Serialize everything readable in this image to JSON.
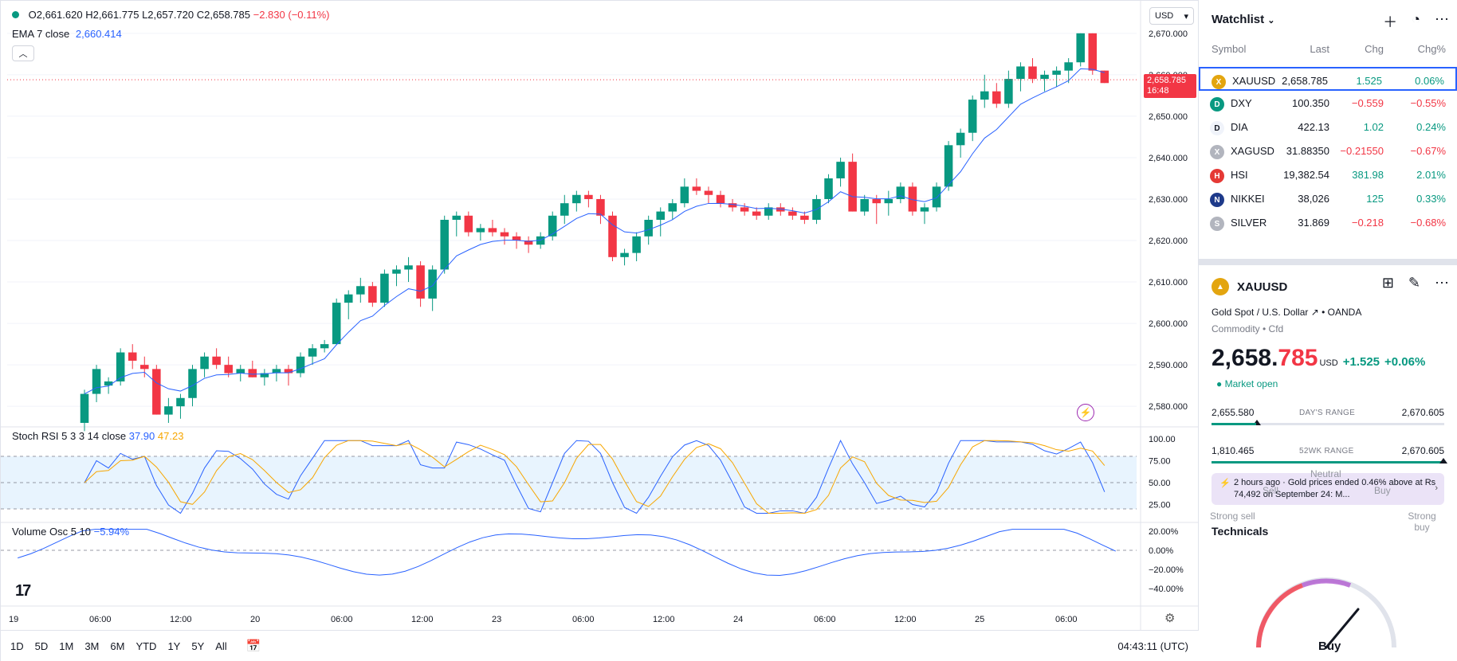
{
  "chart": {
    "ohlc": {
      "open": "O2,661.620",
      "high": "H2,661.775",
      "low": "L2,657.720",
      "close": "C2,658.785",
      "change": "−2.830 (−0.11%)"
    },
    "ema_label": "EMA 7 close",
    "ema_value": "2,660.414",
    "currency": "USD",
    "price_tag": {
      "price": "2,658.785",
      "countdown": "16:48"
    },
    "price_axis": [
      "2,670.000",
      "2,660.000",
      "2,650.000",
      "2,640.000",
      "2,630.000",
      "2,620.000",
      "2,610.000",
      "2,600.000",
      "2,590.000",
      "2,580.000"
    ],
    "stoch": {
      "label": "Stoch RSI 5 3 3 14 close",
      "k": "37.90",
      "d": "47.23",
      "axis": [
        "100.00",
        "75.00",
        "50.00",
        "25.00"
      ]
    },
    "vol": {
      "label": "Volume Osc 5 10",
      "value": "−5.94%",
      "axis": [
        "20.00%",
        "0.00%",
        "−20.00%",
        "−40.00%"
      ]
    },
    "time_axis": [
      "19",
      "06:00",
      "12:00",
      "20",
      "06:00",
      "12:00",
      "23",
      "06:00",
      "12:00",
      "24",
      "06:00",
      "12:00",
      "25",
      "06:00"
    ],
    "timeframes": [
      "1D",
      "5D",
      "1M",
      "3M",
      "6M",
      "YTD",
      "1Y",
      "5Y",
      "All"
    ],
    "clock": "04:43:11 (UTC)",
    "colors": {
      "up": "#089981",
      "down": "#f23645",
      "ema": "#2962ff",
      "k": "#2962ff",
      "d": "#f7a600"
    }
  },
  "chart_data": {
    "type": "candlestick",
    "candles": [
      [
        2576,
        2584,
        2574,
        2583
      ],
      [
        2583,
        2590,
        2581,
        2589
      ],
      [
        2585,
        2587,
        2583,
        2586
      ],
      [
        2586,
        2594,
        2585,
        2593
      ],
      [
        2593,
        2595,
        2589,
        2591
      ],
      [
        2590,
        2592,
        2587,
        2589
      ],
      [
        2589,
        2590,
        2578,
        2578
      ],
      [
        2578,
        2582,
        2576,
        2580
      ],
      [
        2580,
        2583,
        2577,
        2582
      ],
      [
        2582,
        2590,
        2580,
        2589
      ],
      [
        2589,
        2593,
        2587,
        2592
      ],
      [
        2592,
        2594,
        2589,
        2590
      ],
      [
        2590,
        2592,
        2587,
        2588
      ],
      [
        2588,
        2590,
        2586,
        2589
      ],
      [
        2589,
        2591,
        2587,
        2587
      ],
      [
        2587,
        2589,
        2585,
        2588
      ],
      [
        2588,
        2590,
        2586,
        2589
      ],
      [
        2589,
        2590,
        2585,
        2588
      ],
      [
        2588,
        2593,
        2587,
        2592
      ],
      [
        2592,
        2595,
        2590,
        2594
      ],
      [
        2594,
        2596,
        2593,
        2595
      ],
      [
        2595,
        2606,
        2595,
        2605
      ],
      [
        2605,
        2608,
        2601,
        2607
      ],
      [
        2607,
        2611,
        2605,
        2609
      ],
      [
        2609,
        2610,
        2604,
        2605
      ],
      [
        2605,
        2613,
        2604,
        2612
      ],
      [
        2612,
        2614,
        2609,
        2613
      ],
      [
        2613,
        2616,
        2610,
        2614
      ],
      [
        2614,
        2615,
        2604,
        2606
      ],
      [
        2606,
        2614,
        2603,
        2613
      ],
      [
        2613,
        2626,
        2612,
        2625
      ],
      [
        2625,
        2627,
        2621,
        2626
      ],
      [
        2626,
        2627,
        2621,
        2622
      ],
      [
        2622,
        2624,
        2620,
        2623
      ],
      [
        2623,
        2625,
        2621,
        2622
      ],
      [
        2622,
        2623,
        2619,
        2621
      ],
      [
        2621,
        2622,
        2618,
        2620
      ],
      [
        2620,
        2621,
        2617,
        2619
      ],
      [
        2619,
        2622,
        2618,
        2621
      ],
      [
        2621,
        2627,
        2620,
        2626
      ],
      [
        2626,
        2631,
        2624,
        2629
      ],
      [
        2629,
        2632,
        2627,
        2631
      ],
      [
        2631,
        2632,
        2628,
        2630
      ],
      [
        2630,
        2631,
        2624,
        2626
      ],
      [
        2626,
        2627,
        2615,
        2616
      ],
      [
        2616,
        2618,
        2614,
        2617
      ],
      [
        2617,
        2622,
        2615,
        2621
      ],
      [
        2621,
        2626,
        2619,
        2625
      ],
      [
        2625,
        2628,
        2621,
        2627
      ],
      [
        2627,
        2630,
        2625,
        2629
      ],
      [
        2629,
        2635,
        2628,
        2633
      ],
      [
        2633,
        2635,
        2631,
        2632
      ],
      [
        2632,
        2633,
        2629,
        2631
      ],
      [
        2631,
        2632,
        2628,
        2629
      ],
      [
        2629,
        2630,
        2627,
        2628
      ],
      [
        2628,
        2629,
        2626,
        2627
      ],
      [
        2627,
        2628,
        2625,
        2626
      ],
      [
        2626,
        2629,
        2625,
        2628
      ],
      [
        2628,
        2629,
        2626,
        2627
      ],
      [
        2627,
        2628,
        2625,
        2626
      ],
      [
        2626,
        2627,
        2624,
        2625
      ],
      [
        2625,
        2631,
        2624,
        2630
      ],
      [
        2630,
        2636,
        2629,
        2635
      ],
      [
        2635,
        2640,
        2633,
        2639
      ],
      [
        2639,
        2641,
        2627,
        2627
      ],
      [
        2627,
        2631,
        2626,
        2630
      ],
      [
        2630,
        2631,
        2624,
        2629
      ],
      [
        2629,
        2632,
        2626,
        2630
      ],
      [
        2630,
        2634,
        2629,
        2633
      ],
      [
        2633,
        2634,
        2626,
        2627
      ],
      [
        2627,
        2629,
        2624,
        2628
      ],
      [
        2628,
        2634,
        2627,
        2633
      ],
      [
        2633,
        2644,
        2632,
        2643
      ],
      [
        2643,
        2647,
        2640,
        2646
      ],
      [
        2646,
        2655,
        2644,
        2654
      ],
      [
        2654,
        2660,
        2652,
        2656
      ],
      [
        2656,
        2658,
        2652,
        2653
      ],
      [
        2653,
        2661,
        2652,
        2659
      ],
      [
        2659,
        2663,
        2656,
        2662
      ],
      [
        2662,
        2664,
        2658,
        2659
      ],
      [
        2659,
        2661,
        2656,
        2660
      ],
      [
        2660,
        2662,
        2657,
        2661
      ],
      [
        2661,
        2664,
        2658,
        2663
      ],
      [
        2663,
        2670,
        2662,
        2670
      ],
      [
        2670,
        2670,
        2660,
        2661
      ],
      [
        2661,
        2661,
        2658,
        2658
      ]
    ],
    "ylim": [
      2576,
      2674
    ],
    "price_line": 2658.785
  },
  "watchlist": {
    "title": "Watchlist",
    "columns": [
      "Symbol",
      "Last",
      "Chg",
      "Chg%"
    ],
    "rows": [
      {
        "sym": "XAUUSD",
        "last": "2,658.785",
        "chg": "1.525",
        "pct": "0.06%",
        "dir": "pos",
        "icon_color": "#e3a50f",
        "icon": "gold-icon"
      },
      {
        "sym": "DXY",
        "last": "100.350",
        "chg": "−0.559",
        "pct": "−0.55%",
        "dir": "neg",
        "icon_color": "#089981",
        "icon": "dollar-icon"
      },
      {
        "sym": "DIA",
        "last": "422.13",
        "chg": "1.02",
        "pct": "0.24%",
        "dir": "pos",
        "icon_color": "#f0f3fa",
        "icon": "dia-icon"
      },
      {
        "sym": "XAGUSD",
        "last": "31.88350",
        "chg": "−0.21550",
        "pct": "−0.67%",
        "dir": "neg",
        "icon_color": "#b2b5be",
        "icon": "silver-icon"
      },
      {
        "sym": "HSI",
        "last": "19,382.54",
        "chg": "381.98",
        "pct": "2.01%",
        "dir": "pos",
        "icon_color": "#e53935",
        "icon": "hsi-icon"
      },
      {
        "sym": "NIKKEI",
        "last": "38,026",
        "chg": "125",
        "pct": "0.33%",
        "dir": "pos",
        "icon_color": "#1e3a8a",
        "icon": "nikkei-icon"
      },
      {
        "sym": "SILVER",
        "last": "31.869",
        "chg": "−0.218",
        "pct": "−0.68%",
        "dir": "neg",
        "icon_color": "#b2b5be",
        "icon": "silver-icon"
      }
    ]
  },
  "detail": {
    "symbol": "XAUUSD",
    "name": "Gold Spot / U.S. Dollar",
    "broker": "OANDA",
    "category": "Commodity • Cfd",
    "price_main": "2,658.",
    "price_red": "785",
    "currency": "USD",
    "change": "+1.525",
    "change_pct": "+0.06%",
    "status": "Market open",
    "day_low": "2,655.580",
    "day_label": "DAY'S RANGE",
    "day_high": "2,670.605",
    "wk_low": "1,810.465",
    "wk_label": "52WK RANGE",
    "wk_high": "2,670.605",
    "news": "2 hours ago · Gold prices ended 0.46% above at Rs 74,492 on September 24: M...",
    "tech_title": "Technicals",
    "gauge": {
      "strong_sell": "Strong sell",
      "sell": "Sell",
      "neutral": "Neutral",
      "buy": "Buy",
      "strong_buy": "Strong buy",
      "result": "Buy"
    }
  }
}
